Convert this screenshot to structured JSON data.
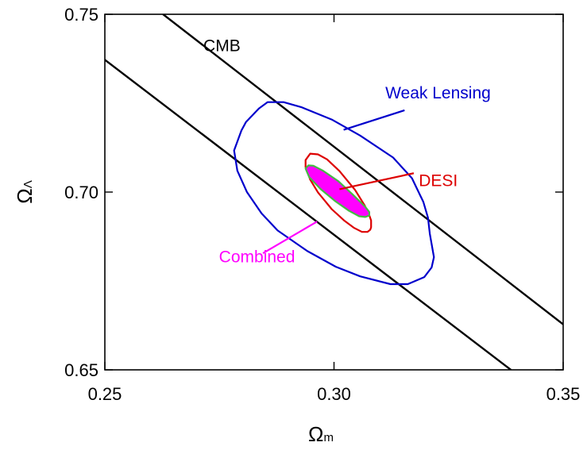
{
  "chart_data": {
    "type": "contour",
    "xlabel": "Ωm",
    "xlabel_main": "Ω",
    "xlabel_sub": "m",
    "ylabel": "ΩΛ",
    "ylabel_main": "Ω",
    "ylabel_sub": "Λ",
    "xlim": [
      0.25,
      0.35
    ],
    "ylim": [
      0.65,
      0.75
    ],
    "xticks": [
      "0.25",
      "0.30",
      "0.35"
    ],
    "yticks": [
      "0.65",
      "0.70",
      "0.75"
    ],
    "grid": false,
    "series": [
      {
        "name": "CMB",
        "color": "#000000",
        "kind": "band",
        "lines": [
          [
            [
              0.2627,
              0.75
            ],
            [
              0.35,
              0.6628
            ]
          ],
          [
            [
              0.25,
              0.7372
            ],
            [
              0.3386,
              0.65
            ]
          ]
        ],
        "label": "CMB",
        "label_at": [
          0.2715,
          0.7396
        ]
      },
      {
        "name": "Weak Lensing",
        "color": "#0000cc",
        "kind": "contour",
        "points": [
          [
            0.2855,
            0.7253
          ],
          [
            0.289,
            0.7253
          ],
          [
            0.2928,
            0.7239
          ],
          [
            0.2995,
            0.7204
          ],
          [
            0.3057,
            0.7159
          ],
          [
            0.3129,
            0.7097
          ],
          [
            0.317,
            0.7039
          ],
          [
            0.3195,
            0.6972
          ],
          [
            0.3205,
            0.6928
          ],
          [
            0.3209,
            0.6883
          ],
          [
            0.3218,
            0.6817
          ],
          [
            0.3213,
            0.6788
          ],
          [
            0.3197,
            0.6761
          ],
          [
            0.3161,
            0.6741
          ],
          [
            0.3123,
            0.6741
          ],
          [
            0.3057,
            0.6763
          ],
          [
            0.3004,
            0.679
          ],
          [
            0.2942,
            0.6834
          ],
          [
            0.2877,
            0.6892
          ],
          [
            0.2842,
            0.694
          ],
          [
            0.281,
            0.7
          ],
          [
            0.2789,
            0.706
          ],
          [
            0.2782,
            0.7117
          ],
          [
            0.2798,
            0.7173
          ],
          [
            0.2808,
            0.7197
          ],
          [
            0.2836,
            0.7235
          ],
          [
            0.2855,
            0.7253
          ]
        ],
        "label": "Weak Lensing",
        "label_at": [
          0.3112,
          0.7263
        ],
        "pointer": [
          [
            0.3154,
            0.723
          ],
          [
            0.3021,
            0.7175
          ]
        ]
      },
      {
        "name": "DESI",
        "color": "#dd0000",
        "kind": "contour",
        "points": [
          [
            0.2948,
            0.7108
          ],
          [
            0.2965,
            0.7106
          ],
          [
            0.2985,
            0.7092
          ],
          [
            0.3012,
            0.7059
          ],
          [
            0.3046,
            0.7006
          ],
          [
            0.3067,
            0.6962
          ],
          [
            0.3077,
            0.6935
          ],
          [
            0.3081,
            0.692
          ],
          [
            0.3081,
            0.6901
          ],
          [
            0.3079,
            0.6894
          ],
          [
            0.3073,
            0.6888
          ],
          [
            0.3061,
            0.6888
          ],
          [
            0.3044,
            0.6899
          ],
          [
            0.3023,
            0.6919
          ],
          [
            0.2995,
            0.6952
          ],
          [
            0.2965,
            0.6999
          ],
          [
            0.2948,
            0.7035
          ],
          [
            0.2938,
            0.707
          ],
          [
            0.2938,
            0.709
          ],
          [
            0.2948,
            0.7108
          ]
        ],
        "label": "DESI",
        "label_at": [
          0.3185,
          0.7017
        ],
        "pointer": [
          [
            0.3174,
            0.7053
          ],
          [
            0.3012,
            0.7008
          ]
        ]
      },
      {
        "name": "Combined",
        "color": "#ff00ff",
        "edge_color": "#44bb44",
        "kind": "filled",
        "points": [
          [
            0.2938,
            0.7066
          ],
          [
            0.2944,
            0.7075
          ],
          [
            0.2955,
            0.7074
          ],
          [
            0.2976,
            0.706
          ],
          [
            0.3009,
            0.7031
          ],
          [
            0.304,
            0.6994
          ],
          [
            0.3068,
            0.6959
          ],
          [
            0.3077,
            0.6944
          ],
          [
            0.3077,
            0.6934
          ],
          [
            0.3068,
            0.693
          ],
          [
            0.3055,
            0.6932
          ],
          [
            0.3033,
            0.6947
          ],
          [
            0.3002,
            0.6975
          ],
          [
            0.2971,
            0.7008
          ],
          [
            0.2946,
            0.7042
          ],
          [
            0.2938,
            0.7066
          ]
        ],
        "label": "Combined",
        "label_at": [
          0.2749,
          0.6803
        ],
        "pointer": [
          [
            0.2845,
            0.6828
          ],
          [
            0.2963,
            0.6917
          ]
        ]
      }
    ]
  }
}
